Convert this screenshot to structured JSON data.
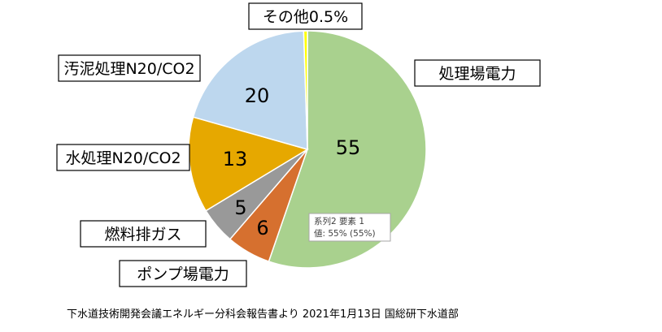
{
  "chart_data": {
    "type": "pie",
    "start_angle_deg": 0,
    "direction": "clockwise",
    "slices": [
      {
        "label": "処理場電力",
        "value": 55,
        "value_label": "55",
        "color": "#a9d18e"
      },
      {
        "label": "ポンプ場電力",
        "value": 6,
        "value_label": "6",
        "color": "#d6702f"
      },
      {
        "label": "燃料排ガス",
        "value": 5,
        "value_label": "5",
        "color": "#999999"
      },
      {
        "label": "水処理N20/CO2",
        "value": 13,
        "value_label": "13",
        "color": "#e6a800"
      },
      {
        "label": "汚泥処理N20/CO2",
        "value": 20,
        "value_label": "20",
        "color": "#bdd7ee"
      },
      {
        "label": "その他0.5%",
        "value": 0.5,
        "value_label": "",
        "color": "#ffff00"
      }
    ],
    "tooltip": {
      "line1": "系列2 要素 1",
      "line2": "値: 55% (55%)"
    }
  },
  "source": "下水道技術開発会議エネルギー分科会報告書より 2021年1月13日 国総研下水道部"
}
